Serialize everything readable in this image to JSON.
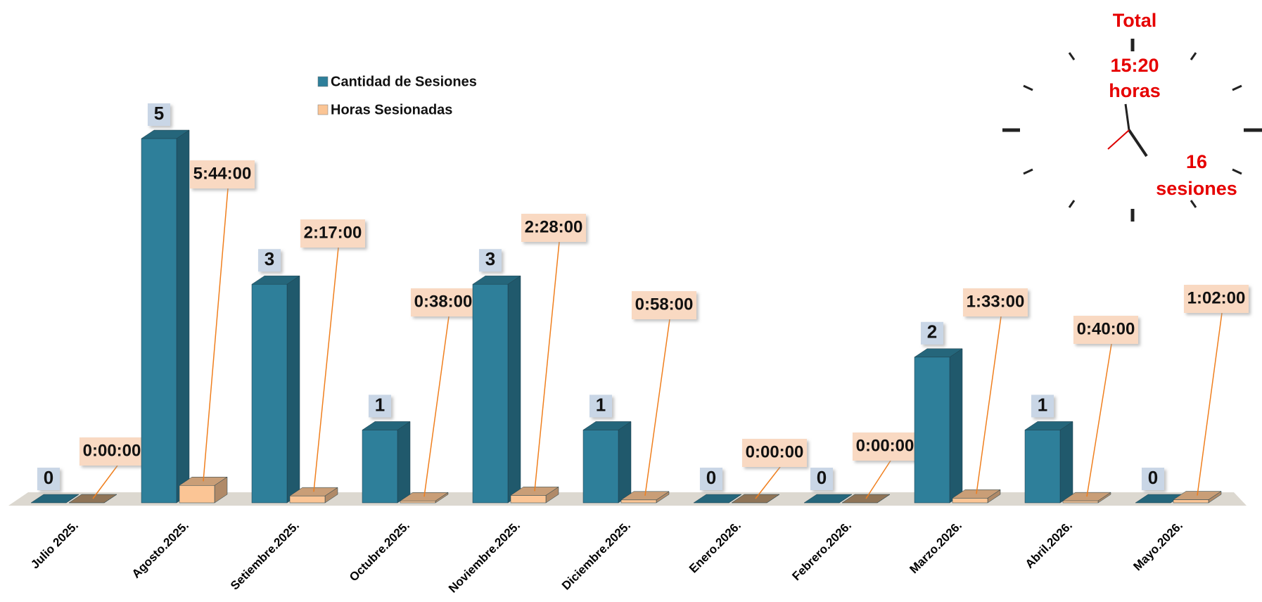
{
  "chart_data": {
    "type": "bar3d",
    "categories": [
      "Julio 2025.",
      "Agosto.2025.",
      "Setiembre.2025.",
      "Octubre.2025.",
      "Noviembre.2025.",
      "Diciembre.2025.",
      "Enero.2026.",
      "Febrero.2026.",
      "Marzo.2026.",
      "Abril.2026.",
      "Mayo.2026."
    ],
    "series": [
      {
        "name": "Cantidad de Sesiones",
        "color": "#2e7f9a",
        "values": [
          0,
          5,
          3,
          1,
          3,
          1,
          0,
          0,
          2,
          1,
          0
        ]
      },
      {
        "name": "Horas Sesionadas",
        "color": "#fbc595",
        "axis": "y2",
        "values": [
          0,
          5.7333,
          2.2833,
          0.6333,
          2.4667,
          0.9667,
          0,
          0,
          1.55,
          0.6667,
          1.0333
        ],
        "value_labels": [
          "0:00:00",
          "5:44:00",
          "2:17:00",
          "0:38:00",
          "2:28:00",
          "0:58:00",
          "0:00:00",
          "0:00:00",
          "1:33:00",
          "0:40:00",
          "1:02:00"
        ]
      }
    ],
    "ylim": [
      0,
      5
    ],
    "y2lim": [
      0,
      120
    ],
    "legend": "top-left",
    "total": {
      "title": "Total",
      "hours": "15:20",
      "hours_unit": "horas",
      "sessions": 16,
      "sessions_unit": "sesiones"
    }
  }
}
